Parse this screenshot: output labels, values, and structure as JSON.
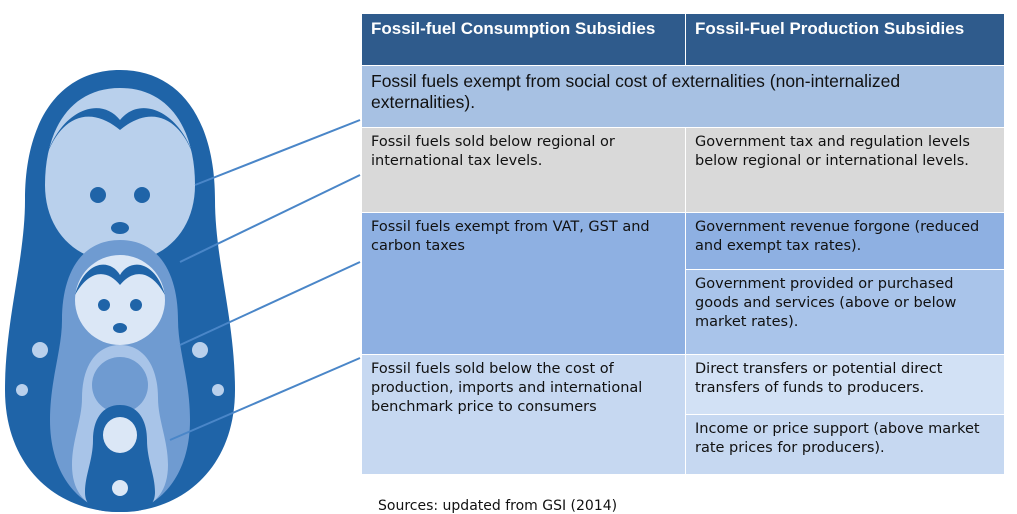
{
  "table": {
    "headers": [
      "Fossil-fuel Consumption Subsidies",
      "Fossil-Fuel Production Subsidies"
    ],
    "rows": [
      [
        "Fossil fuels exempt from social cost of externalities (non-internalized externalities)."
      ],
      [
        "Fossil fuels sold below regional or international tax levels.",
        "Government tax and regulation levels below regional or international levels."
      ],
      [
        "Fossil fuels exempt from VAT, GST and carbon taxes",
        "Government revenue forgone (reduced and exempt tax rates).",
        "Government provided or purchased goods and services (above or below market rates)."
      ],
      [
        "Fossil fuels sold below the cost of production, imports and international benchmark price to consumers",
        "Direct transfers or potential direct transfers of funds to producers.",
        "Income or price support (above market rate prices for producers)."
      ]
    ]
  },
  "source": "Sources: updated from GSI (2014)"
}
